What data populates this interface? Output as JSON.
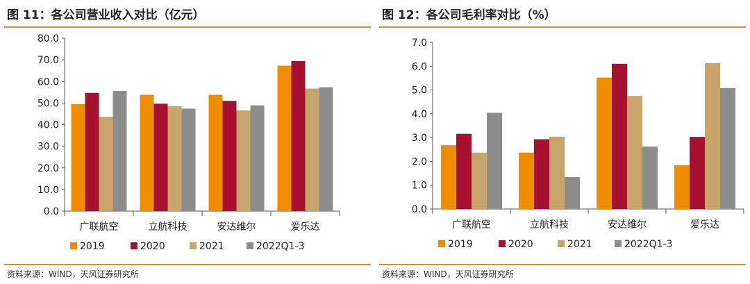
{
  "charts": [
    {
      "title": "图 11：各公司营业收入对比（亿元）",
      "source": "资料来源：WIND，天风证券研究所"
    },
    {
      "title": "图 12：各公司毛利率对比（%）",
      "source": "资料来源：WIND，天风证券研究所"
    }
  ],
  "chart_data": [
    {
      "type": "bar",
      "title": "图 11：各公司营业收入对比（亿元）",
      "categories": [
        "广联航空",
        "立航科技",
        "安达维尔",
        "爱乐达"
      ],
      "series": [
        {
          "name": "2019",
          "color": "#F08C00",
          "values": [
            49.5,
            53.8,
            53.8,
            67.3
          ]
        },
        {
          "name": "2020",
          "color": "#A5112F",
          "values": [
            54.7,
            49.7,
            51.0,
            69.4
          ]
        },
        {
          "name": "2021",
          "color": "#C8A36A",
          "values": [
            43.6,
            48.6,
            46.6,
            56.7
          ]
        },
        {
          "name": "2022Q1-3",
          "color": "#8C8C8C",
          "values": [
            55.6,
            47.4,
            48.9,
            57.3
          ]
        }
      ],
      "ylim": [
        0,
        80
      ],
      "yticks": [
        "0.0",
        "10.0",
        "20.0",
        "30.0",
        "40.0",
        "50.0",
        "60.0",
        "70.0",
        "80.0"
      ],
      "xlabel": "",
      "ylabel": "",
      "grid": false,
      "legend": "bottom"
    },
    {
      "type": "bar",
      "title": "图 12：各公司毛利率对比（%）",
      "categories": [
        "广联航空",
        "立航科技",
        "安达维尔",
        "爱乐达"
      ],
      "series": [
        {
          "name": "2019",
          "color": "#F08C00",
          "values": [
            2.68,
            2.37,
            5.52,
            1.84
          ]
        },
        {
          "name": "2020",
          "color": "#A5112F",
          "values": [
            3.16,
            2.93,
            6.1,
            3.03
          ]
        },
        {
          "name": "2021",
          "color": "#C8A36A",
          "values": [
            2.37,
            3.04,
            4.75,
            6.13
          ]
        },
        {
          "name": "2022Q1-3",
          "color": "#8C8C8C",
          "values": [
            4.04,
            1.34,
            2.62,
            5.08
          ]
        }
      ],
      "ylim": [
        0,
        7
      ],
      "yticks": [
        "0.0",
        "1.0",
        "2.0",
        "3.0",
        "4.0",
        "5.0",
        "6.0",
        "7.0"
      ],
      "xlabel": "",
      "ylabel": "",
      "grid": false,
      "legend": "bottom"
    }
  ]
}
